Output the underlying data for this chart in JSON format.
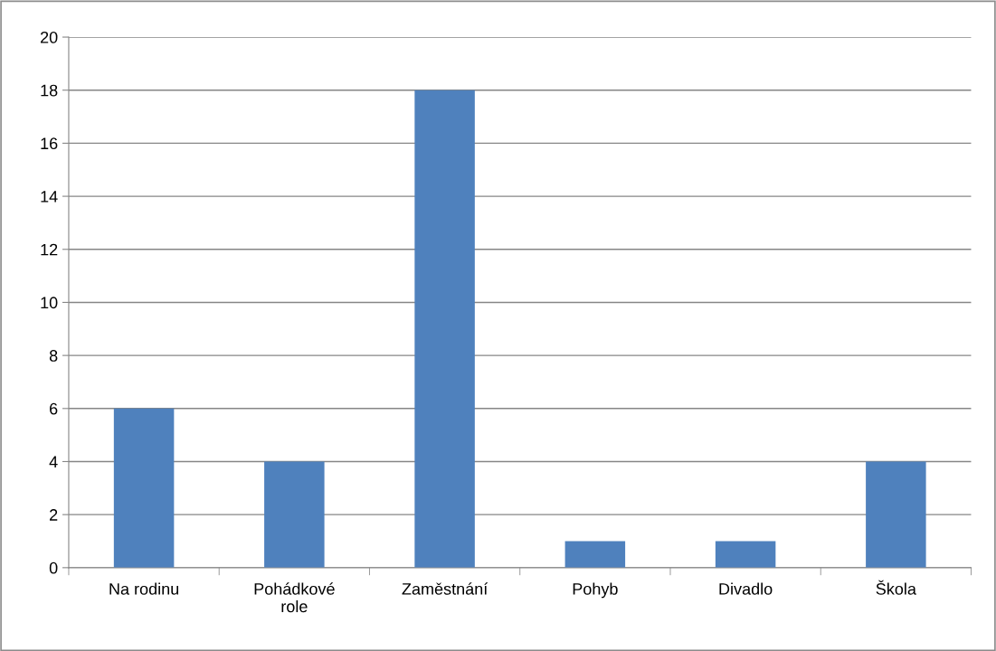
{
  "chart_data": {
    "type": "bar",
    "categories": [
      "Na rodinu",
      "Pohádkové\nrole",
      "Zaměstnání",
      "Pohyb",
      "Divadlo",
      "Škola"
    ],
    "values": [
      6,
      4,
      18,
      1,
      1,
      4
    ],
    "color": "#4f81bd",
    "ylim": [
      0,
      20
    ],
    "yticks": [
      0,
      2,
      4,
      6,
      8,
      10,
      12,
      14,
      16,
      18,
      20
    ],
    "grid": "y",
    "legend": false
  }
}
